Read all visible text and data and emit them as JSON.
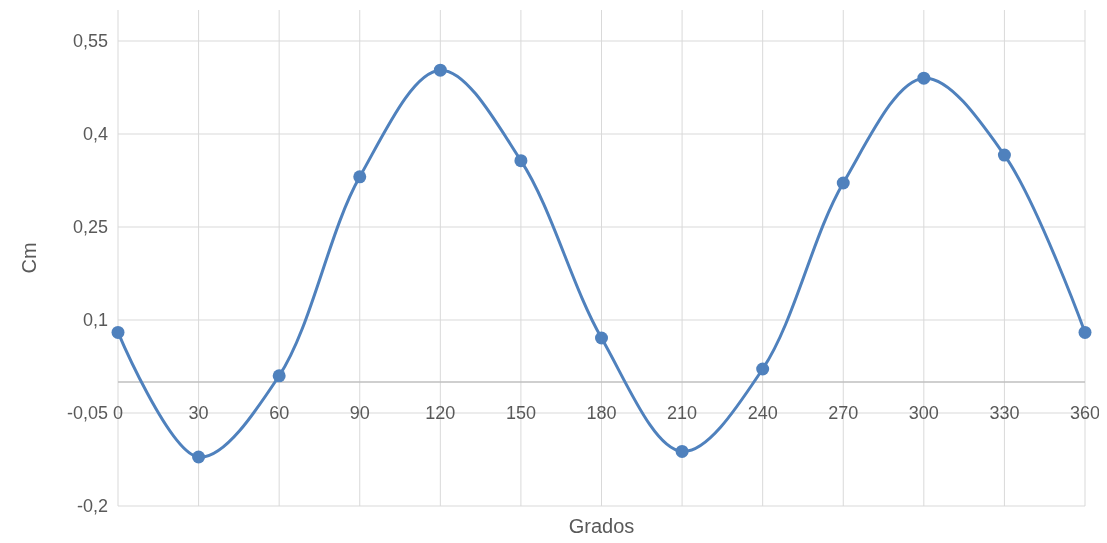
{
  "chart_data": {
    "type": "line",
    "xlabel": "Grados",
    "ylabel": "Cm",
    "x": [
      0,
      30,
      60,
      90,
      120,
      150,
      180,
      210,
      240,
      270,
      300,
      330,
      360
    ],
    "series": [
      {
        "color": "#4f81bd",
        "values": [
          0.08,
          -0.121,
          0.01,
          0.331,
          0.503,
          0.357,
          0.071,
          -0.112,
          0.021,
          0.321,
          0.49,
          0.366,
          0.08
        ]
      }
    ],
    "xlim": [
      0,
      360
    ],
    "xticks": [
      0,
      30,
      60,
      90,
      120,
      150,
      180,
      210,
      240,
      270,
      300,
      330,
      360
    ],
    "ylim": [
      -0.2,
      0.6
    ],
    "yticks": [
      {
        "value": -0.2,
        "label": "-0,2"
      },
      {
        "value": -0.05,
        "label": "-0,05"
      },
      {
        "value": 0.1,
        "label": "0,1"
      },
      {
        "value": 0.25,
        "label": "0,25"
      },
      {
        "value": 0.4,
        "label": "0,4"
      },
      {
        "value": 0.55,
        "label": "0,55"
      }
    ],
    "grid": true,
    "marker": "circle",
    "line_style": "solid"
  }
}
